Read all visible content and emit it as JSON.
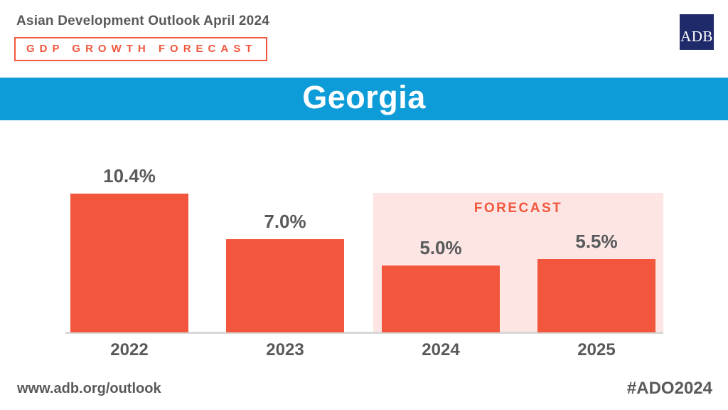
{
  "header": {
    "edition": "Asian Development Outlook April 2024",
    "kicker": "GDP GROWTH FORECAST",
    "logo_text": "ADB"
  },
  "banner": {
    "title": "Georgia"
  },
  "chart_data": {
    "type": "bar",
    "title": "Georgia",
    "categories": [
      "2022",
      "2023",
      "2024",
      "2025"
    ],
    "values": [
      10.4,
      7.0,
      5.0,
      5.5
    ],
    "value_labels": [
      "10.4%",
      "7.0%",
      "5.0%",
      "5.5%"
    ],
    "unit": "percent GDP growth",
    "forecast_label": "FORECAST",
    "forecast_categories": [
      "2024",
      "2025"
    ],
    "ylim": [
      0,
      12
    ],
    "grid": false,
    "legend": false,
    "bar_color": "#F2573D",
    "forecast_bg_color": "#FCE5E2"
  },
  "footer": {
    "website": "www.adb.org/outlook",
    "hashtag": "#ADO2024"
  },
  "colors": {
    "accent": "#F2573D",
    "forecast_pink": "#FCE5E2",
    "banner_blue": "#0E9CD8",
    "logo_navy": "#1F2A6B",
    "text_gray": "#58595B",
    "axis_gray": "#D8D8D8"
  }
}
